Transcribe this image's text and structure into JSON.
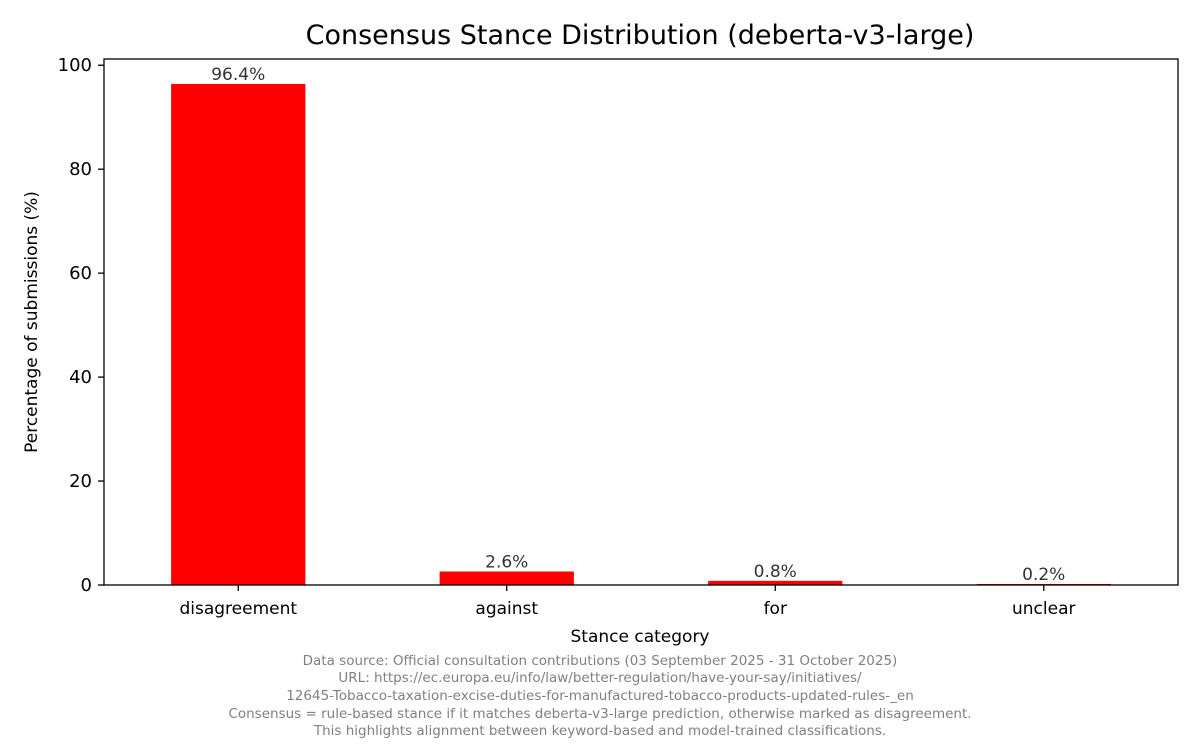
{
  "chart_data": {
    "type": "bar",
    "title": "Consensus Stance Distribution (deberta-v3-large)",
    "xlabel": "Stance category",
    "ylabel": "Percentage of submissions (%)",
    "categories": [
      "disagreement",
      "against",
      "for",
      "unclear"
    ],
    "values": [
      96.4,
      2.6,
      0.8,
      0.2
    ],
    "value_labels": [
      "96.4%",
      "2.6%",
      "0.8%",
      "0.2%"
    ],
    "ylim": [
      0,
      101.2
    ],
    "yticks": [
      0,
      20,
      40,
      60,
      80,
      100
    ],
    "bar_color": "#ff0000",
    "grid": false,
    "legend": "none"
  },
  "caption": [
    "Data source: Official consultation contributions (03 September 2025 - 31 October 2025)",
    "URL: https://ec.europa.eu/info/law/better-regulation/have-your-say/initiatives/",
    "12645-Tobacco-taxation-excise-duties-for-manufactured-tobacco-products-updated-rules-_en",
    "Consensus = rule-based stance if it matches deberta-v3-large prediction, otherwise marked as disagreement.",
    "This highlights alignment between keyword-based and model-trained classifications."
  ]
}
